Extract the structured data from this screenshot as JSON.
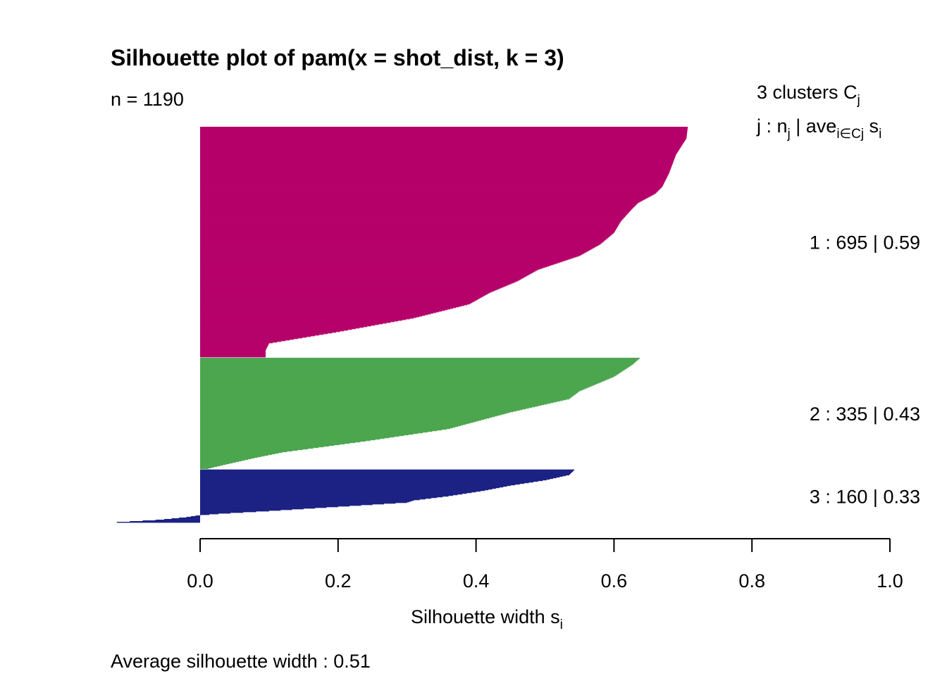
{
  "chart_data": {
    "type": "bar",
    "orientation": "horizontal",
    "title": "Silhouette plot of pam(x = shot_dist, k = 3)",
    "n_label": "n = 1190",
    "legend_header": {
      "line1_prefix": "3  clusters  C",
      "line1_sub": "j",
      "line2_a": "j :  n",
      "line2_a_sub": "j",
      "line2_b": " | ave",
      "line2_b_sub": "i∈Cj",
      "line2_c": "  s",
      "line2_c_sub": "i"
    },
    "xlabel_main": "Silhouette width s",
    "xlabel_sub": "i",
    "xlim": [
      -0.13,
      1.0
    ],
    "ticks": [
      0.0,
      0.2,
      0.4,
      0.6,
      0.8,
      1.0
    ],
    "tick_labels": [
      "0.0",
      "0.2",
      "0.4",
      "0.6",
      "0.8",
      "1.0"
    ],
    "average_label": "Average silhouette width :  0.51",
    "clusters": [
      {
        "id": 1,
        "label": "1 :   695  |  0.59",
        "n": 695,
        "avg": 0.59,
        "color": "#b5006a",
        "profile": [
          [
            0,
            0.707
          ],
          [
            0.05,
            0.705
          ],
          [
            0.12,
            0.69
          ],
          [
            0.2,
            0.68
          ],
          [
            0.26,
            0.67
          ],
          [
            0.29,
            0.66
          ],
          [
            0.33,
            0.635
          ],
          [
            0.36,
            0.625
          ],
          [
            0.41,
            0.61
          ],
          [
            0.46,
            0.6
          ],
          [
            0.51,
            0.58
          ],
          [
            0.56,
            0.55
          ],
          [
            0.62,
            0.49
          ],
          [
            0.67,
            0.46
          ],
          [
            0.72,
            0.42
          ],
          [
            0.77,
            0.39
          ],
          [
            0.83,
            0.31
          ],
          [
            0.89,
            0.2
          ],
          [
            0.94,
            0.1
          ],
          [
            0.97,
            0.095
          ],
          [
            1.0,
            0.095
          ]
        ]
      },
      {
        "id": 2,
        "label": "2 :   335  |  0.43",
        "n": 335,
        "avg": 0.43,
        "color": "#4ca64f",
        "profile": [
          [
            0,
            0.638
          ],
          [
            0.06,
            0.627
          ],
          [
            0.17,
            0.6
          ],
          [
            0.3,
            0.55
          ],
          [
            0.37,
            0.535
          ],
          [
            0.49,
            0.45
          ],
          [
            0.64,
            0.36
          ],
          [
            0.75,
            0.24
          ],
          [
            0.85,
            0.12
          ],
          [
            0.9,
            0.08
          ],
          [
            0.97,
            0.03
          ],
          [
            1.0,
            0.01
          ]
        ]
      },
      {
        "id": 3,
        "label": "3 :   160  |  0.33",
        "n": 160,
        "avg": 0.33,
        "color": "#1d2284",
        "profile": [
          [
            0,
            0.543
          ],
          [
            0.1,
            0.535
          ],
          [
            0.2,
            0.5
          ],
          [
            0.3,
            0.45
          ],
          [
            0.4,
            0.41
          ],
          [
            0.5,
            0.36
          ],
          [
            0.58,
            0.31
          ],
          [
            0.62,
            0.3
          ],
          [
            0.7,
            0.2
          ],
          [
            0.78,
            0.1
          ],
          [
            0.83,
            0.03
          ],
          [
            0.86,
            0.0
          ],
          [
            0.9,
            -0.02
          ],
          [
            0.95,
            -0.06
          ],
          [
            1.0,
            -0.13
          ]
        ]
      }
    ]
  }
}
